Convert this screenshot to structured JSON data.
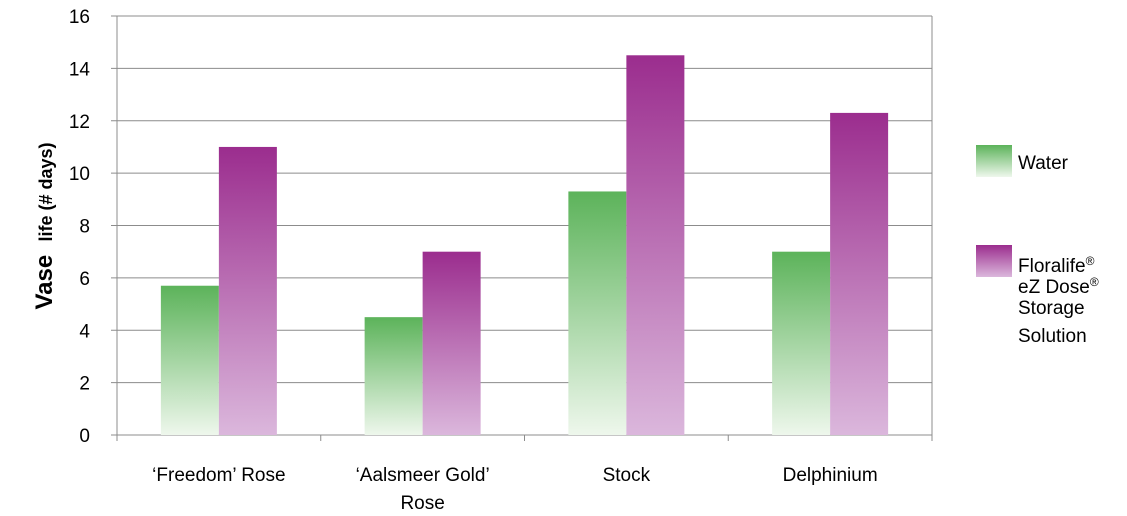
{
  "chart_data": {
    "type": "bar",
    "categories": [
      [
        "‘Freedom’ Rose"
      ],
      [
        "‘Aalsmeer Gold’",
        "Rose"
      ],
      [
        "Stock"
      ],
      [
        "Delphinium"
      ]
    ],
    "series": [
      {
        "name": "Water",
        "values": [
          5.7,
          4.5,
          9.3,
          7.0
        ],
        "color_top": "#5cb35a",
        "color_bottom": "#eef7ec"
      },
      {
        "name": "Floralife® eZ Dose® Storage Solution",
        "name_lines": [
          {
            "text": "Floralife",
            "sup": "®"
          },
          {
            "text": "eZ Dose",
            "sup": "®"
          },
          {
            "text": "Storage",
            "sup": ""
          },
          {
            "text": "Solution",
            "sup": ""
          }
        ],
        "values": [
          11.0,
          7.0,
          14.5,
          12.3
        ],
        "color_top": "#9b2d8e",
        "color_bottom": "#dbb7dc"
      }
    ],
    "ylabel_main": "Vase",
    "ylabel_sub": "life (# days)",
    "xlabel": "",
    "ylim": [
      0,
      16
    ],
    "yticks": [
      0,
      2,
      4,
      6,
      8,
      10,
      12,
      14,
      16
    ],
    "grid": true,
    "legend_position": "right"
  }
}
